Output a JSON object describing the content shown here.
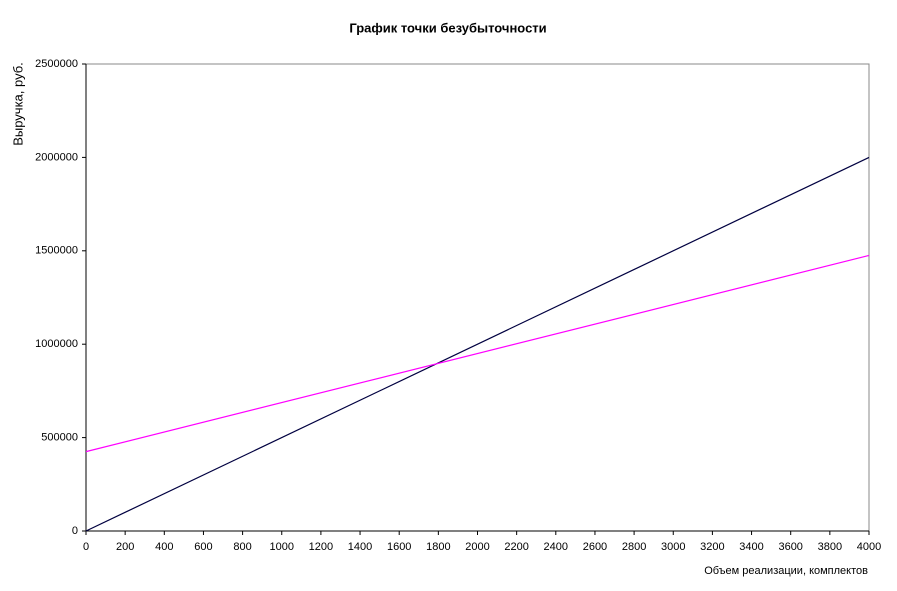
{
  "chart_data": {
    "type": "line",
    "title": "График точки безубыточности",
    "x_label": "Объем реализации, комплектов",
    "y_label": "Выручка,  руб.",
    "x": [
      0,
      4000
    ],
    "series": [
      {
        "color": "#000040",
        "values": [
          0,
          2000000
        ]
      },
      {
        "color": "#ff00ff",
        "values": [
          425000,
          1475000
        ]
      }
    ],
    "xlim": [
      0,
      4000
    ],
    "xticks": [
      0,
      200,
      400,
      600,
      800,
      1000,
      1200,
      1400,
      1600,
      1800,
      2000,
      2200,
      2400,
      2600,
      2800,
      3000,
      3200,
      3400,
      3600,
      3800,
      4000
    ],
    "ylim": [
      0,
      2500000
    ],
    "yticks": [
      0,
      500000,
      1000000,
      1500000,
      2000000,
      2500000
    ],
    "grid": false
  }
}
